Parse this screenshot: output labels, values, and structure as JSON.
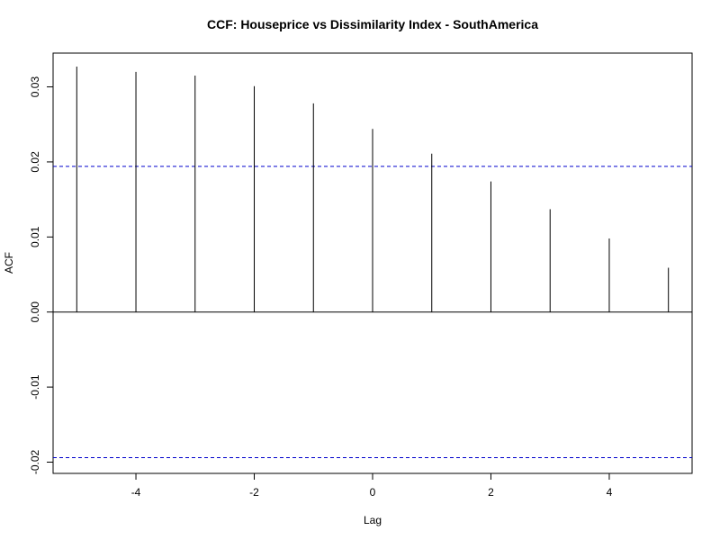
{
  "chart_data": {
    "type": "bar",
    "title": "CCF: Houseprice vs Dissimilarity Index - SouthAmerica",
    "xlabel": "Lag",
    "ylabel": "ACF",
    "x": [
      -5,
      -4,
      -3,
      -2,
      -1,
      0,
      1,
      2,
      3,
      4,
      5
    ],
    "values": [
      0.0327,
      0.032,
      0.0315,
      0.0301,
      0.0278,
      0.0244,
      0.0211,
      0.0174,
      0.0137,
      0.0098,
      0.0059
    ],
    "xlim": [
      -5.4,
      5.4
    ],
    "ylim": [
      -0.0215,
      0.0345
    ],
    "x_ticks": [
      -4,
      -2,
      0,
      2,
      4
    ],
    "x_tick_labels": [
      "-4",
      "-2",
      "0",
      "2",
      "4"
    ],
    "y_ticks": [
      -0.02,
      -0.01,
      0.0,
      0.01,
      0.02,
      0.03
    ],
    "y_tick_labels": [
      "-0.02",
      "-0.01",
      "0.00",
      "0.01",
      "0.02",
      "0.03"
    ],
    "confidence_bounds": [
      0.0194,
      -0.0194
    ],
    "confidence_color": "#0000cc",
    "bar_color": "#000000",
    "grid": false
  }
}
